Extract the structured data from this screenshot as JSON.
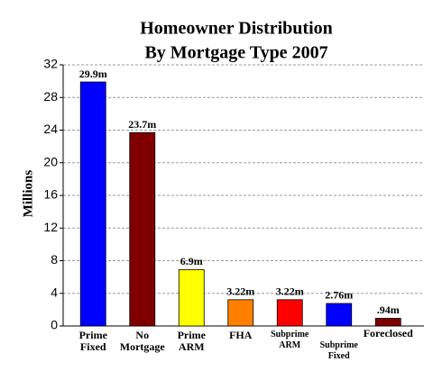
{
  "chart_data": {
    "type": "bar",
    "title": [
      "Homeowner Distribution",
      "By Mortgage Type 2007"
    ],
    "y_label": "Millions",
    "categories": [
      "Prime Fixed",
      "No Mortgage",
      "Prime ARM",
      "FHA",
      "Subprime ARM",
      "Subprime Fixed",
      "Foreclosed"
    ],
    "values": [
      29.9,
      23.7,
      6.9,
      3.22,
      3.22,
      2.76,
      0.94
    ],
    "value_labels": [
      "29.9m",
      "23.7m",
      "6.9m",
      "3.22m",
      "3.22m",
      "2.76m",
      ".94m"
    ],
    "colors": [
      "#0000ff",
      "#800000",
      "#ffff00",
      "#ff8000",
      "#ff0000",
      "#0000ff",
      "#800000"
    ],
    "ylim": [
      0,
      32
    ],
    "yticks": [
      0,
      4,
      8,
      12,
      16,
      20,
      24,
      28,
      32
    ],
    "grid": true
  }
}
